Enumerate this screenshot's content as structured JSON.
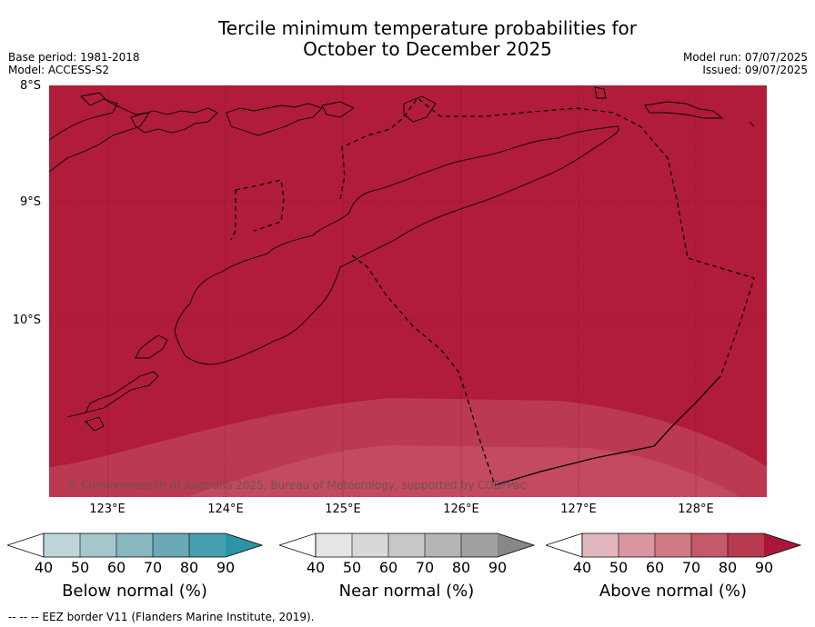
{
  "title": {
    "line1": "Tercile minimum temperature probabilities for",
    "line2": "October to December 2025"
  },
  "meta_left": {
    "base_period": "Base period: 1981-2018",
    "model": "Model: ACCESS-S2"
  },
  "meta_right": {
    "model_run": "Model run: 07/07/2025",
    "issued": "Issued: 09/07/2025"
  },
  "map": {
    "lat_labels": [
      "8°S",
      "9°S",
      "10°S"
    ],
    "lon_labels": [
      "123°E",
      "124°E",
      "125°E",
      "126°E",
      "127°E",
      "128°E"
    ],
    "copyright": "© Commonwealth of Australia 2025, Bureau of Meteorology, supported by COSPPac",
    "colors": {
      "above_90": "#b01c3a",
      "above_80": "#bb3a52",
      "above_70": "#c9576a"
    }
  },
  "colorbars": [
    {
      "label": "Below normal (%)",
      "ticks": [
        "40",
        "50",
        "60",
        "70",
        "80",
        "90"
      ],
      "colors": [
        "#bed5db",
        "#a7c6cc",
        "#89b7c0",
        "#6aa9b5",
        "#46a0af",
        "#2b94a6"
      ]
    },
    {
      "label": "Near normal (%)",
      "ticks": [
        "40",
        "50",
        "60",
        "70",
        "80",
        "90"
      ],
      "colors": [
        "#e5e5e5",
        "#d8d8d8",
        "#c8c8c8",
        "#b5b5b5",
        "#a0a0a0",
        "#878787"
      ]
    },
    {
      "label": "Above normal (%)",
      "ticks": [
        "40",
        "50",
        "60",
        "70",
        "80",
        "90"
      ],
      "colors": [
        "#e1b6be",
        "#d9969f",
        "#cf7a84",
        "#c3596a",
        "#b83a51",
        "#a8173a"
      ]
    }
  ],
  "footer": "--  --  -- EEZ border V11 (Flanders Marine Institute, 2019)."
}
